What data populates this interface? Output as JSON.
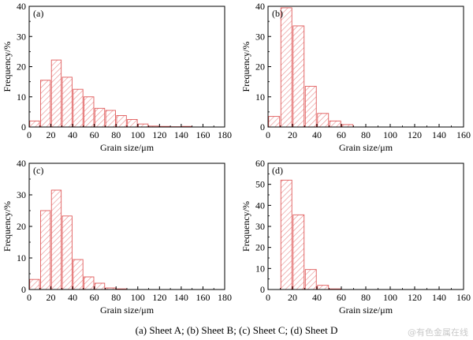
{
  "caption": "(a) Sheet A; (b) Sheet B; (c) Sheet C; (d) Sheet D",
  "watermark": "@有色金属在线",
  "colors": {
    "bar_stroke": "#e05a5a",
    "hatch": "#e98b8b",
    "axis": "#000000"
  },
  "chart_data": [
    {
      "type": "bar",
      "panel_label": "(a)",
      "xlabel": "Grain size/μm",
      "ylabel": "Frequency/%",
      "xlim": [
        0,
        180
      ],
      "ylim": [
        0,
        40
      ],
      "xticks": [
        0,
        20,
        40,
        60,
        80,
        100,
        120,
        140,
        160,
        180
      ],
      "yticks": [
        0,
        10,
        20,
        30,
        40
      ],
      "x": [
        5,
        15,
        25,
        35,
        45,
        55,
        65,
        75,
        85,
        95,
        105,
        115,
        125,
        135,
        145
      ],
      "values": [
        2,
        15.5,
        22.2,
        16.5,
        12.5,
        10,
        6.2,
        5.5,
        3.8,
        2.5,
        1,
        0.3,
        0.2,
        0.1,
        0.2
      ]
    },
    {
      "type": "bar",
      "panel_label": "(b)",
      "xlabel": "Grain size/μm",
      "ylabel": "Frequency/%",
      "xlim": [
        0,
        160
      ],
      "ylim": [
        0,
        40
      ],
      "xticks": [
        0,
        20,
        40,
        60,
        80,
        100,
        120,
        140,
        160
      ],
      "yticks": [
        0,
        10,
        20,
        30,
        40
      ],
      "x": [
        5,
        15,
        25,
        35,
        45,
        55,
        65
      ],
      "values": [
        3.5,
        39.5,
        33.5,
        13.5,
        4.5,
        2,
        0.8
      ]
    },
    {
      "type": "bar",
      "panel_label": "(c)",
      "xlabel": "Grain size/μm",
      "ylabel": "Frequency/%",
      "xlim": [
        0,
        180
      ],
      "ylim": [
        0,
        40
      ],
      "xticks": [
        0,
        20,
        40,
        60,
        80,
        100,
        120,
        140,
        160,
        180
      ],
      "yticks": [
        0,
        10,
        20,
        30,
        40
      ],
      "x": [
        5,
        15,
        25,
        35,
        45,
        55,
        65,
        75,
        85
      ],
      "values": [
        3.2,
        25,
        31.5,
        23.3,
        9.5,
        4,
        2,
        0.5,
        0.2
      ]
    },
    {
      "type": "bar",
      "panel_label": "(d)",
      "xlabel": "Grain size/μm",
      "ylabel": "Frequency/%",
      "xlim": [
        0,
        160
      ],
      "ylim": [
        0,
        60
      ],
      "xticks": [
        0,
        20,
        40,
        60,
        80,
        100,
        120,
        140,
        160
      ],
      "yticks": [
        0,
        10,
        20,
        30,
        40,
        50,
        60
      ],
      "x": [
        15,
        25,
        35,
        45,
        55
      ],
      "values": [
        52,
        35.5,
        9.5,
        2,
        0.3
      ]
    }
  ]
}
